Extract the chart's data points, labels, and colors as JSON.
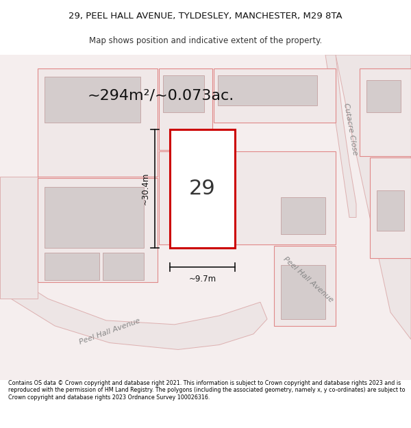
{
  "title_line1": "29, PEEL HALL AVENUE, TYLDESLEY, MANCHESTER, M29 8TA",
  "title_line2": "Map shows position and indicative extent of the property.",
  "area_text": "~294m²/~0.073ac.",
  "property_number": "29",
  "width_label": "~9.7m",
  "height_label": "~30.4m",
  "street_label1": "Peel Hall Avenue",
  "street_label1b": "Peel Hall Avenue",
  "street_label2": "Cutacre Close",
  "footer_text": "Contains OS data © Crown copyright and database right 2021. This information is subject to Crown copyright and database rights 2023 and is reproduced with the permission of HM Land Registry. The polygons (including the associated geometry, namely x, y co-ordinates) are subject to Crown copyright and database rights 2023 Ordnance Survey 100026316.",
  "map_bg": "#f5eeee",
  "prop_fill": "#ffffff",
  "prop_edge": "#cc0000",
  "bldg_fill": "#d4cccc",
  "bldg_edge": "#c8a8a8",
  "red_edge": "#e08888",
  "road_fill": "#ede5e5",
  "road_edge": "#ddb0b0",
  "dim_color": "#111111",
  "text_color": "#555555",
  "title_color": "#111111"
}
